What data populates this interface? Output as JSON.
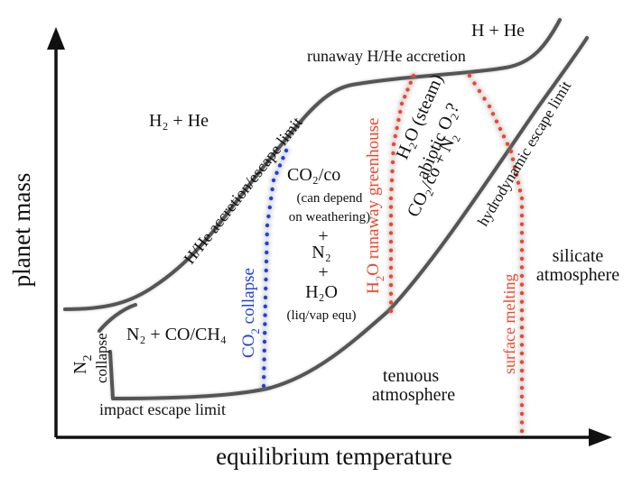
{
  "axes": {
    "x_title": "equilibrium temperature",
    "y_title": "planet mass"
  },
  "colors": {
    "curve": "#555555",
    "co2_collapse": "#1f3fe0",
    "h2o_runaway": "#f0452b",
    "axis": "#111111",
    "text": "#111111"
  },
  "curve_labels": {
    "impact_escape": "impact escape limit",
    "hhe_escape": "H/He accretion/escape limit",
    "runaway": "runaway H/He accretion",
    "hydrodynamic": "hydrodynamic escape limit"
  },
  "line_labels": {
    "co2_collapse": {
      "main": "CO",
      "sub": "2",
      "tail": " collapse"
    },
    "h2o_runaway": {
      "main": "H",
      "sub": "2",
      "tail": "O runaway greenhouse"
    },
    "surface_melting": "surface melting",
    "n2_collapse": {
      "main": "N",
      "sub": "2",
      "line2": "collapse"
    }
  },
  "zones": {
    "h2he_left": "H₂ + He",
    "h_he_top": "H + He",
    "n2_co_ch4": "N₂ + CO/CH₄",
    "co2_co": "CO₂/co",
    "co2_note1": "(can depend",
    "co2_note2": "on weathering)",
    "plus": "+",
    "n2": "N₂",
    "h2o": "H₂O",
    "h2o_note": "(liq/vap equ)",
    "h2o_steam": "H₂O (steam)",
    "abiotic_o2": "abiotic O₂?",
    "co2_co_n2": "CO₂/co + N₂",
    "silicate1": "silicate",
    "silicate2": "atmosphere",
    "tenuous1": "tenuous",
    "tenuous2": "atmosphere"
  }
}
